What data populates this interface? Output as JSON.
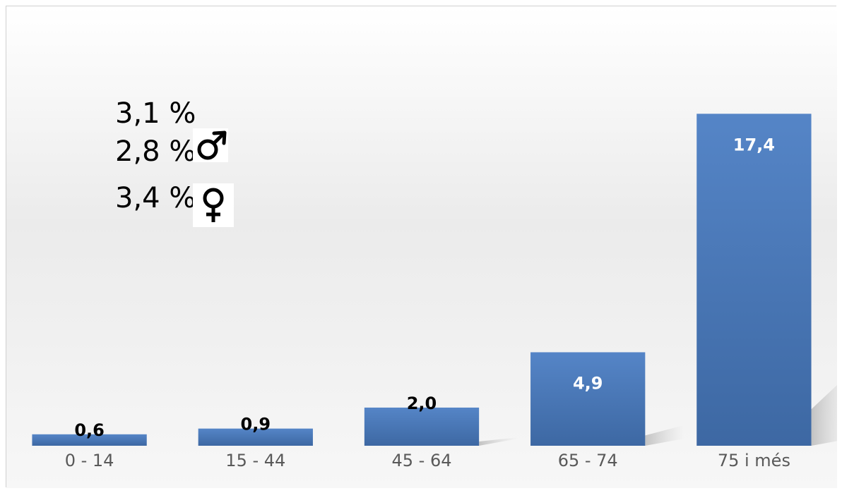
{
  "chart_data": {
    "type": "bar",
    "categories": [
      "0 - 14",
      "15 - 44",
      "45 - 64",
      "65 - 74",
      "75 i més"
    ],
    "values": [
      0.6,
      0.9,
      2.0,
      4.9,
      17.4
    ],
    "data_labels": [
      "0,6",
      "0,9",
      "2,0",
      "4,9",
      "17,4"
    ],
    "ylim": [
      0,
      20
    ],
    "grid": false,
    "bar_color": "#4472C4",
    "annotations": [
      {
        "text": "3,1 %",
        "icon": ""
      },
      {
        "text": "2,8 %",
        "icon": "male-symbol-icon"
      },
      {
        "text": "3,4 %",
        "icon": "female-symbol-icon"
      }
    ]
  }
}
